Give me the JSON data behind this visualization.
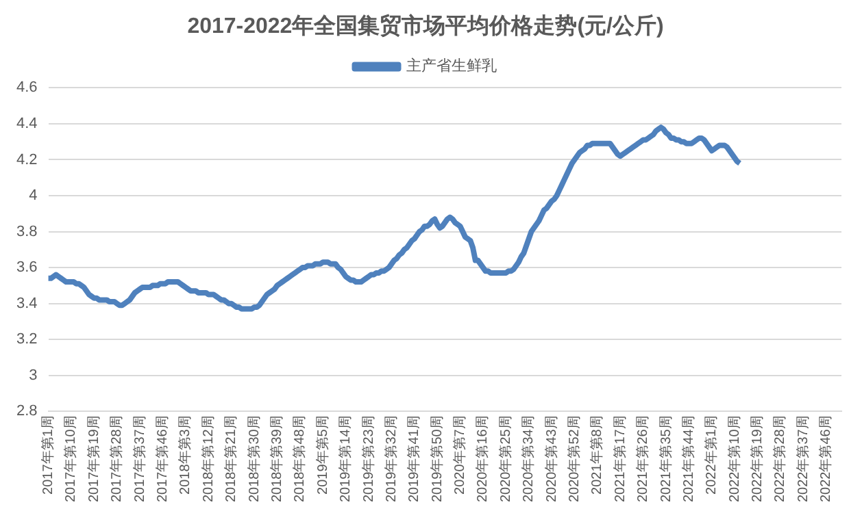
{
  "chart_data": {
    "type": "line",
    "title": "2017-2022年全国集贸市场平均价格走势(元/公斤)",
    "categories": [
      "2017年第1周",
      null,
      null,
      null,
      null,
      null,
      null,
      null,
      null,
      "2017年第10周",
      null,
      null,
      null,
      null,
      null,
      null,
      null,
      null,
      "2017年第19周",
      null,
      null,
      null,
      null,
      null,
      null,
      null,
      null,
      "2017年第28周",
      null,
      null,
      null,
      null,
      null,
      null,
      null,
      null,
      "2017年第37周",
      null,
      null,
      null,
      null,
      null,
      null,
      null,
      null,
      "2017年第46周",
      null,
      null,
      null,
      null,
      null,
      null,
      null,
      null,
      "2018年第3周",
      null,
      null,
      null,
      null,
      null,
      null,
      null,
      null,
      "2018年第12周",
      null,
      null,
      null,
      null,
      null,
      null,
      null,
      null,
      "2018年第21周",
      null,
      null,
      null,
      null,
      null,
      null,
      null,
      null,
      "2018年第30周",
      null,
      null,
      null,
      null,
      null,
      null,
      null,
      null,
      "2018年第39周",
      null,
      null,
      null,
      null,
      null,
      null,
      null,
      null,
      "2018年第48周",
      null,
      null,
      null,
      null,
      null,
      null,
      null,
      null,
      "2019年第5周",
      null,
      null,
      null,
      null,
      null,
      null,
      null,
      null,
      "2019年第14周",
      null,
      null,
      null,
      null,
      null,
      null,
      null,
      null,
      "2019年第23周",
      null,
      null,
      null,
      null,
      null,
      null,
      null,
      null,
      "2019年第32周",
      null,
      null,
      null,
      null,
      null,
      null,
      null,
      null,
      "2019年第41周",
      null,
      null,
      null,
      null,
      null,
      null,
      null,
      null,
      "2019年第50周",
      null,
      null,
      null,
      null,
      null,
      null,
      null,
      null,
      "2020年第7周",
      null,
      null,
      null,
      null,
      null,
      null,
      null,
      null,
      "2020年第16周",
      null,
      null,
      null,
      null,
      null,
      null,
      null,
      null,
      "2020年第25周",
      null,
      null,
      null,
      null,
      null,
      null,
      null,
      null,
      "2020年第34周",
      null,
      null,
      null,
      null,
      null,
      null,
      null,
      null,
      "2020年第43周",
      null,
      null,
      null,
      null,
      null,
      null,
      null,
      null,
      "2020年第52周",
      null,
      null,
      null,
      null,
      null,
      null,
      null,
      null,
      "2021年第8周",
      null,
      null,
      null,
      null,
      null,
      null,
      null,
      null,
      "2021年第17周",
      null,
      null,
      null,
      null,
      null,
      null,
      null,
      null,
      "2021年第26周",
      null,
      null,
      null,
      null,
      null,
      null,
      null,
      null,
      "2021年第35周",
      null,
      null,
      null,
      null,
      null,
      null,
      null,
      null,
      "2021年第44周",
      null,
      null,
      null,
      null,
      null,
      null,
      null,
      null,
      "2022年第1周",
      null,
      null,
      null,
      null,
      null,
      null,
      null,
      null,
      "2022年第10周",
      null,
      null,
      null,
      null,
      null,
      null,
      null,
      null,
      "2022年第19周",
      null,
      null,
      null,
      null,
      null,
      null,
      null,
      null,
      "2022年第28周",
      null,
      null,
      null,
      null,
      null,
      null,
      null,
      null,
      "2022年第37周",
      null,
      null,
      null,
      null,
      null,
      null,
      null,
      null,
      "2022年第46周",
      null,
      null,
      null,
      null,
      null,
      null
    ],
    "series": [
      {
        "name": "主产省生鲜乳",
        "color": "#4f81bd",
        "values": [
          3.54,
          3.54,
          3.55,
          3.56,
          3.55,
          3.54,
          3.53,
          3.52,
          3.52,
          3.52,
          3.52,
          3.51,
          3.51,
          3.5,
          3.49,
          3.47,
          3.45,
          3.44,
          3.43,
          3.43,
          3.42,
          3.42,
          3.42,
          3.42,
          3.41,
          3.41,
          3.41,
          3.4,
          3.39,
          3.39,
          3.4,
          3.41,
          3.42,
          3.44,
          3.46,
          3.47,
          3.48,
          3.49,
          3.49,
          3.49,
          3.49,
          3.5,
          3.5,
          3.5,
          3.51,
          3.51,
          3.51,
          3.52,
          3.52,
          3.52,
          3.52,
          3.52,
          3.51,
          3.5,
          3.49,
          3.48,
          3.47,
          3.47,
          3.47,
          3.46,
          3.46,
          3.46,
          3.46,
          3.45,
          3.45,
          3.45,
          3.44,
          3.43,
          3.42,
          3.42,
          3.41,
          3.4,
          3.4,
          3.39,
          3.38,
          3.38,
          3.37,
          3.37,
          3.37,
          3.37,
          3.37,
          3.38,
          3.38,
          3.39,
          3.41,
          3.43,
          3.45,
          3.46,
          3.47,
          3.48,
          3.5,
          3.51,
          3.52,
          3.53,
          3.54,
          3.55,
          3.56,
          3.57,
          3.58,
          3.59,
          3.6,
          3.6,
          3.61,
          3.61,
          3.61,
          3.62,
          3.62,
          3.62,
          3.63,
          3.63,
          3.63,
          3.62,
          3.62,
          3.62,
          3.6,
          3.59,
          3.57,
          3.55,
          3.54,
          3.53,
          3.53,
          3.52,
          3.52,
          3.52,
          3.53,
          3.54,
          3.55,
          3.56,
          3.56,
          3.57,
          3.57,
          3.58,
          3.58,
          3.59,
          3.6,
          3.62,
          3.64,
          3.65,
          3.67,
          3.68,
          3.7,
          3.71,
          3.73,
          3.75,
          3.76,
          3.78,
          3.8,
          3.81,
          3.83,
          3.83,
          3.84,
          3.86,
          3.87,
          3.84,
          3.82,
          3.83,
          3.85,
          3.87,
          3.88,
          3.87,
          3.85,
          3.84,
          3.83,
          3.8,
          3.77,
          3.76,
          3.75,
          3.71,
          3.64,
          3.64,
          3.62,
          3.6,
          3.58,
          3.58,
          3.57,
          3.57,
          3.57,
          3.57,
          3.57,
          3.57,
          3.57,
          3.58,
          3.58,
          3.59,
          3.61,
          3.63,
          3.66,
          3.68,
          3.72,
          3.76,
          3.8,
          3.82,
          3.84,
          3.86,
          3.89,
          3.92,
          3.93,
          3.95,
          3.97,
          3.98,
          4.0,
          4.03,
          4.06,
          4.09,
          4.12,
          4.15,
          4.18,
          4.2,
          4.22,
          4.24,
          4.25,
          4.26,
          4.28,
          4.28,
          4.29,
          4.29,
          4.29,
          4.29,
          4.29,
          4.29,
          4.29,
          4.29,
          4.27,
          4.25,
          4.23,
          4.22,
          4.23,
          4.24,
          4.25,
          4.26,
          4.27,
          4.28,
          4.29,
          4.3,
          4.31,
          4.31,
          4.32,
          4.33,
          4.34,
          4.36,
          4.37,
          4.38,
          4.37,
          4.35,
          4.34,
          4.32,
          4.32,
          4.31,
          4.31,
          4.3,
          4.3,
          4.29,
          4.29,
          4.29,
          4.3,
          4.31,
          4.32,
          4.32,
          4.31,
          4.29,
          4.27,
          4.25,
          4.26,
          4.27,
          4.28,
          4.28,
          4.28,
          4.27,
          4.25,
          4.23,
          4.21,
          4.19,
          4.18,
          null,
          null,
          null,
          null,
          null,
          null,
          null,
          null,
          null,
          null,
          null,
          null,
          null,
          null,
          null,
          null,
          null,
          null,
          null,
          null,
          null,
          null,
          null,
          null,
          null,
          null,
          null,
          null,
          null,
          null,
          null,
          null,
          null,
          null,
          null,
          null,
          null,
          null,
          null,
          null
        ]
      }
    ],
    "ylim": [
      2.8,
      4.6
    ],
    "yticks": [
      2.8,
      3,
      3.2,
      3.4,
      3.6,
      3.8,
      4,
      4.2,
      4.4,
      4.6
    ],
    "grid": "y",
    "legend": "top",
    "marker": "none",
    "line_style": "solid"
  }
}
